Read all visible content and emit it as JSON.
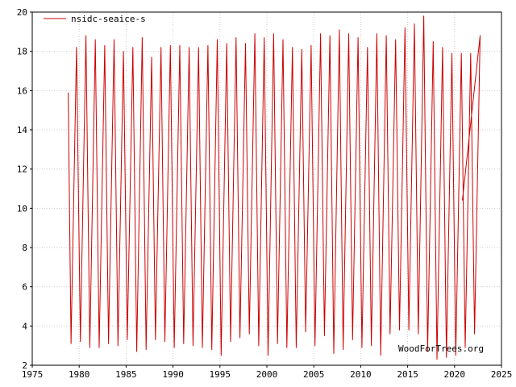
{
  "chart_data": {
    "type": "line",
    "title": "",
    "xlabel": "",
    "ylabel": "",
    "xlim": [
      1975,
      2025
    ],
    "ylim": [
      2,
      20
    ],
    "xticks": [
      "1975",
      "1980",
      "1985",
      "1990",
      "1995",
      "2000",
      "2005",
      "2010",
      "2015",
      "2020",
      "2025"
    ],
    "yticks": [
      "2",
      "4",
      "6",
      "8",
      "10",
      "12",
      "14",
      "16",
      "18",
      "20"
    ],
    "grid": true,
    "legend_position": "top-left",
    "watermark": "WoodForTrees.org",
    "colors": {
      "series": "#cc0000",
      "grid": "#cccccc",
      "axis": "#000000"
    },
    "series": [
      {
        "name": "nsidc-seaice-s",
        "start": 1978.83,
        "end": 2020.83,
        "initial_value": 15.9,
        "final_value": 10.4,
        "min_month_fraction": 0.13,
        "max_month_fraction": 0.72,
        "annual_minima": [
          3.1,
          3.2,
          2.9,
          2.9,
          3.1,
          3.0,
          3.3,
          2.7,
          2.8,
          3.3,
          3.2,
          2.9,
          3.1,
          3.0,
          2.9,
          2.8,
          2.5,
          3.2,
          3.4,
          3.6,
          3.0,
          2.5,
          3.1,
          2.9,
          2.9,
          3.7,
          3.0,
          3.5,
          2.6,
          2.8,
          3.3,
          2.9,
          3.0,
          2.5,
          3.6,
          3.8,
          3.8,
          3.6,
          2.7,
          2.3,
          2.4,
          2.5,
          2.9,
          3.6
        ],
        "annual_maxima": [
          18.2,
          18.8,
          18.6,
          18.3,
          18.6,
          18.0,
          18.2,
          18.7,
          17.7,
          18.2,
          18.3,
          18.3,
          18.2,
          18.2,
          18.3,
          18.6,
          18.4,
          18.7,
          18.4,
          18.9,
          18.7,
          18.9,
          18.6,
          18.2,
          18.1,
          18.3,
          18.9,
          18.8,
          19.1,
          18.9,
          18.7,
          18.2,
          18.9,
          18.8,
          18.6,
          19.2,
          19.4,
          19.8,
          18.5,
          18.2,
          17.9,
          17.9,
          17.9,
          18.8
        ]
      }
    ]
  }
}
